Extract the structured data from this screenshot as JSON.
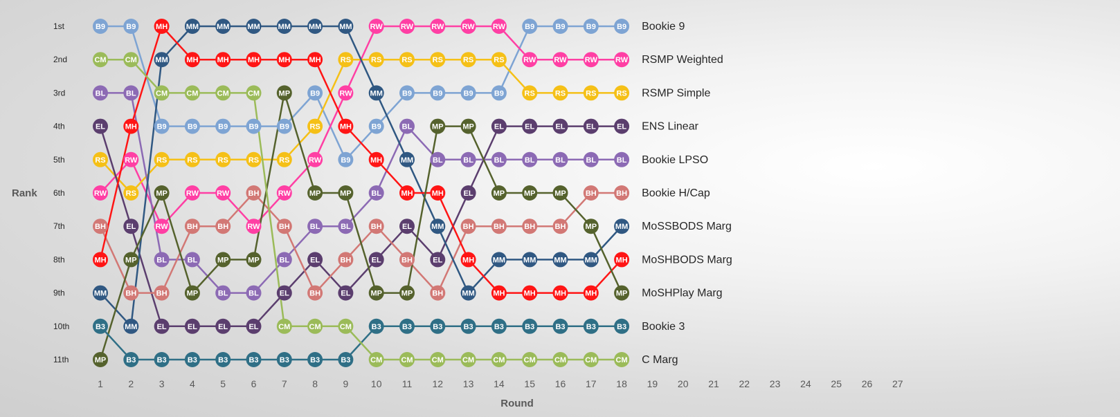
{
  "chart_data": {
    "type": "line",
    "title": "",
    "xlabel": "Round",
    "ylabel": "Rank",
    "x": [
      1,
      2,
      3,
      4,
      5,
      6,
      7,
      8,
      9,
      10,
      11,
      12,
      13,
      14,
      15,
      16,
      17,
      18
    ],
    "x_ticks": [
      "1",
      "2",
      "3",
      "4",
      "5",
      "6",
      "7",
      "8",
      "9",
      "10",
      "11",
      "12",
      "13",
      "14",
      "15",
      "16",
      "17",
      "18",
      "19",
      "20",
      "21",
      "22",
      "23",
      "24",
      "25",
      "26",
      "27"
    ],
    "y_ticks": [
      "1st",
      "2nd",
      "3rd",
      "4th",
      "5th",
      "6th",
      "7th",
      "8th",
      "9th",
      "10th",
      "11th"
    ],
    "xlim": [
      1,
      27
    ],
    "ylim": [
      1,
      11
    ],
    "y_inverted": true,
    "legend": "right-end labels",
    "series": [
      {
        "name": "Bookie 9",
        "code": "B9",
        "color": "#7ea4d3",
        "values": [
          1,
          1,
          4,
          4,
          4,
          4,
          4,
          3,
          5,
          4,
          3,
          3,
          3,
          3,
          1,
          1,
          1,
          1
        ]
      },
      {
        "name": "RSMP Weighted",
        "code": "RW",
        "color": "#ff3fa4",
        "values": [
          6,
          5,
          7,
          6,
          6,
          7,
          6,
          5,
          3,
          1,
          1,
          1,
          1,
          1,
          2,
          2,
          2,
          2
        ]
      },
      {
        "name": "RSMP Simple",
        "code": "RS",
        "color": "#f5c017",
        "values": [
          5,
          6,
          5,
          5,
          5,
          5,
          5,
          4,
          2,
          2,
          2,
          2,
          2,
          2,
          3,
          3,
          3,
          3
        ]
      },
      {
        "name": "ENS Linear",
        "code": "EL",
        "color": "#5b3e6e",
        "values": [
          4,
          7,
          10,
          10,
          10,
          10,
          9,
          8,
          9,
          8,
          7,
          8,
          6,
          4,
          4,
          4,
          4,
          4
        ]
      },
      {
        "name": "Bookie LPSO",
        "code": "BL",
        "color": "#8c6ab4",
        "values": [
          3,
          3,
          8,
          8,
          9,
          9,
          8,
          7,
          7,
          6,
          4,
          5,
          5,
          5,
          5,
          5,
          5,
          5
        ]
      },
      {
        "name": "Bookie H/Cap",
        "code": "BH",
        "color": "#d27875",
        "values": [
          7,
          9,
          9,
          7,
          7,
          6,
          7,
          9,
          8,
          7,
          8,
          9,
          7,
          7,
          7,
          7,
          6,
          6
        ]
      },
      {
        "name": "MoSSBODS Marg",
        "code": "MM",
        "color": "#305882",
        "values": [
          9,
          10,
          2,
          1,
          1,
          1,
          1,
          1,
          1,
          3,
          5,
          7,
          9,
          8,
          8,
          8,
          8,
          7
        ]
      },
      {
        "name": "MoSHBODS Marg",
        "code": "MH",
        "color": "#ff1515",
        "values": [
          8,
          4,
          1,
          2,
          2,
          2,
          2,
          2,
          4,
          5,
          6,
          6,
          8,
          9,
          9,
          9,
          9,
          8
        ]
      },
      {
        "name": "MoSHPlay Marg",
        "code": "MP",
        "color": "#55622d",
        "values": [
          11,
          8,
          6,
          9,
          8,
          8,
          3,
          6,
          6,
          9,
          9,
          4,
          4,
          6,
          6,
          6,
          7,
          9
        ]
      },
      {
        "name": "Bookie 3",
        "code": "B3",
        "color": "#2f6f86",
        "values": [
          10,
          11,
          11,
          11,
          11,
          11,
          11,
          11,
          11,
          10,
          10,
          10,
          10,
          10,
          10,
          10,
          10,
          10
        ]
      },
      {
        "name": "C Marg",
        "code": "CM",
        "color": "#9bbb59",
        "values": [
          2,
          2,
          3,
          3,
          3,
          3,
          10,
          10,
          10,
          11,
          11,
          11,
          11,
          11,
          11,
          11,
          11,
          11
        ]
      }
    ]
  }
}
